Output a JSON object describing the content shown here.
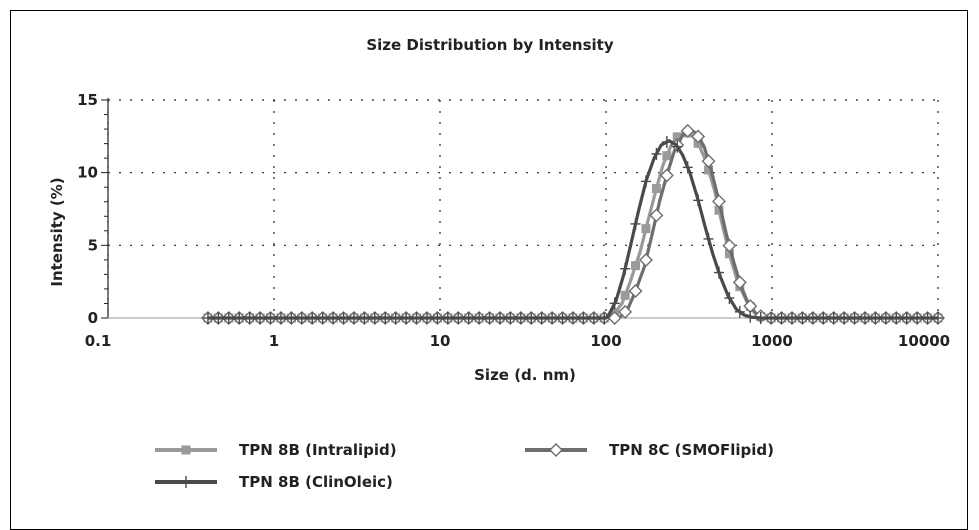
{
  "chart_data": {
    "type": "line",
    "title": "Size Distribution by Intensity",
    "xlabel": "Size (d. nm)",
    "ylabel": "Intensity (%)",
    "xscale": "log",
    "xlim": [
      0.1,
      10000
    ],
    "ylim": [
      0,
      15
    ],
    "xticks": [
      0.1,
      1,
      10,
      100,
      1000,
      10000
    ],
    "xtick_labels": [
      "0.1",
      "1",
      "10",
      "100",
      "1000",
      "10000"
    ],
    "yticks": [
      0,
      5,
      10,
      15
    ],
    "ytick_labels": [
      "0",
      "5",
      "10",
      "15"
    ],
    "grid": true,
    "legend_position": "bottom",
    "series": [
      {
        "name": "TPN 8B (Intralipid)",
        "color": "#9a9a9a",
        "marker": "square",
        "x": [
          0.4,
          1,
          10,
          100,
          110,
          125,
          140,
          160,
          180,
          200,
          220,
          245,
          270,
          300,
          330,
          360,
          400,
          450,
          500,
          560,
          620,
          700,
          780,
          850,
          950,
          1100,
          10000
        ],
        "y": [
          0,
          0,
          0,
          0,
          0.2,
          1.0,
          2.5,
          4.5,
          6.8,
          8.8,
          10.5,
          11.8,
          12.5,
          12.8,
          12.6,
          12.0,
          10.8,
          8.8,
          6.5,
          4.2,
          2.5,
          1.2,
          0.4,
          0.1,
          0,
          0,
          0
        ]
      },
      {
        "name": "TPN 8C  (SMOFlipid)",
        "color": "#6e6e6e",
        "marker": "diamond",
        "x": [
          0.4,
          1,
          10,
          100,
          120,
          135,
          150,
          170,
          190,
          210,
          235,
          260,
          290,
          320,
          350,
          390,
          430,
          480,
          530,
          590,
          650,
          720,
          800,
          880,
          950,
          1100,
          10000
        ],
        "y": [
          0,
          0,
          0,
          0,
          0,
          0.6,
          1.8,
          3.5,
          5.8,
          8.0,
          10.0,
          11.6,
          12.6,
          13.0,
          12.7,
          11.8,
          10.2,
          8.0,
          5.8,
          3.8,
          2.2,
          1.0,
          0.3,
          0.05,
          0,
          0,
          0
        ]
      },
      {
        "name": "TPN 8B (ClinOleic)",
        "color": "#4a4a4a",
        "marker": "plus",
        "x": [
          0.4,
          1,
          10,
          100,
          105,
          115,
          128,
          142,
          158,
          175,
          195,
          215,
          240,
          265,
          290,
          320,
          355,
          395,
          440,
          490,
          545,
          610,
          680,
          760,
          850,
          1000,
          10000
        ],
        "y": [
          0,
          0,
          0,
          0,
          0.3,
          1.2,
          3.0,
          5.2,
          7.5,
          9.5,
          11.0,
          11.9,
          12.2,
          11.9,
          11.2,
          10.0,
          8.3,
          6.3,
          4.4,
          2.8,
          1.5,
          0.6,
          0.2,
          0.05,
          0,
          0,
          0
        ]
      }
    ]
  },
  "legend": {
    "items": [
      {
        "label": "TPN 8B (Intralipid)",
        "color": "#9a9a9a",
        "marker": "square"
      },
      {
        "label": "TPN 8C  (SMOFlipid)",
        "color": "#6e6e6e",
        "marker": "diamond"
      },
      {
        "label": "TPN 8B (ClinOleic)",
        "color": "#4a4a4a",
        "marker": "plus"
      }
    ]
  }
}
